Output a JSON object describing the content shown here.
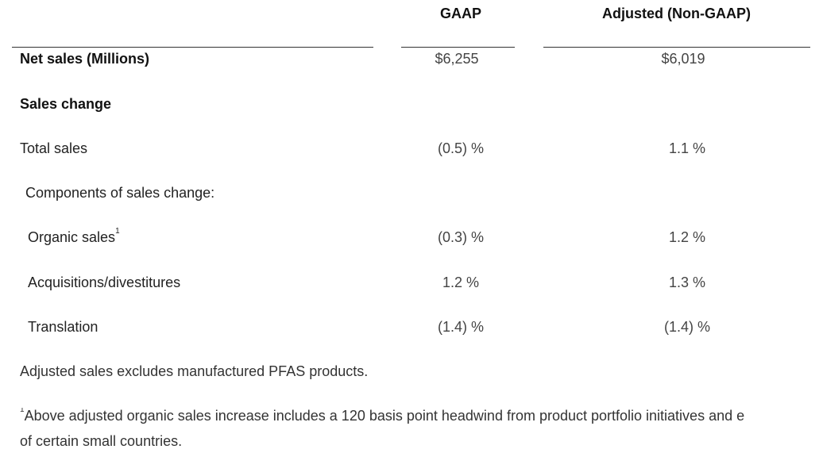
{
  "table": {
    "columns": [
      "GAAP",
      "Adjusted (Non-GAAP)"
    ],
    "rows": [
      {
        "label": "Net sales (Millions)",
        "gaap": "$6,255",
        "adjusted": "$6,019"
      },
      {
        "label": "Sales change",
        "gaap": "",
        "adjusted": ""
      },
      {
        "label": "Total sales",
        "gaap": "(0.5) %",
        "adjusted": "1.1 %"
      },
      {
        "label": "Components of sales change:",
        "gaap": "",
        "adjusted": ""
      },
      {
        "label": "Organic sales",
        "label_sup": "1",
        "gaap": "(0.3) %",
        "adjusted": "1.2 %"
      },
      {
        "label": "Acquisitions/divestitures",
        "gaap": "1.2 %",
        "adjusted": "1.3 %"
      },
      {
        "label": "Translation",
        "gaap": "(1.4) %",
        "adjusted": "(1.4) %"
      }
    ]
  },
  "notes": {
    "adjusted_note": "Adjusted sales excludes manufactured PFAS products.",
    "footnote_marker": "1",
    "footnote_line1": "Above adjusted organic sales increase includes a 120 basis point headwind from product portfolio initiatives and e",
    "footnote_line2": "of certain small countries."
  }
}
